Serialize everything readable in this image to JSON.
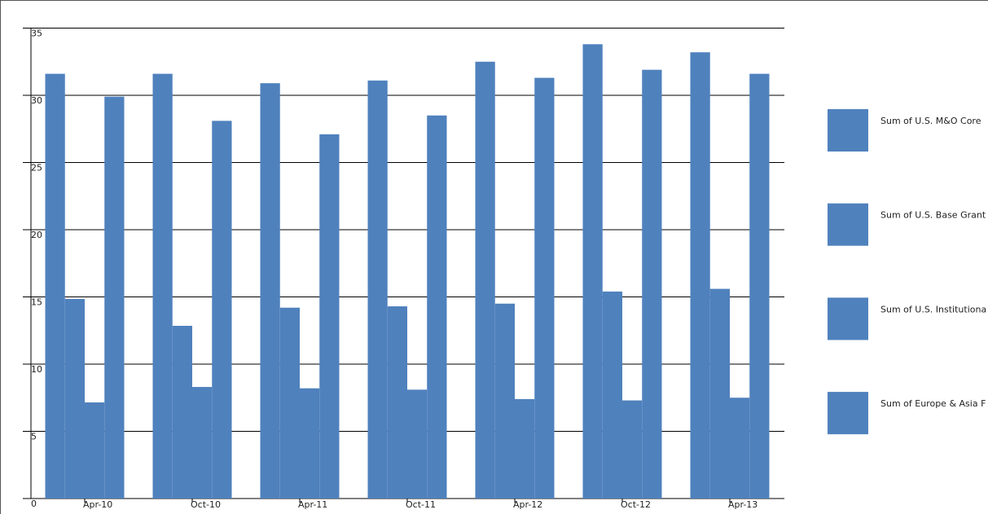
{
  "chart_data": {
    "type": "bar",
    "categories": [
      "Apr-10",
      "Oct-10",
      "Apr-11",
      "Oct-11",
      "Apr-12",
      "Oct-12",
      "Apr-13"
    ],
    "series": [
      {
        "name": "Sum of U.S. M&O Core",
        "color": "#4f81bd",
        "values": [
          31.6,
          31.6,
          30.9,
          31.1,
          32.5,
          33.8,
          33.2
        ]
      },
      {
        "name": "Sum of U.S. Base Grant",
        "color": "#4f81bd",
        "values": [
          14.85,
          12.85,
          14.2,
          14.3,
          14.5,
          15.4,
          15.6
        ]
      },
      {
        "name": "Sum of U.S. Institutiona",
        "color": "#4f81bd",
        "values": [
          7.15,
          8.3,
          8.2,
          8.1,
          7.4,
          7.3,
          7.5
        ]
      },
      {
        "name": "Sum of Europe & Asia F",
        "color": "#4f81bd",
        "values": [
          29.9,
          28.1,
          27.1,
          28.5,
          31.3,
          31.9,
          31.6
        ]
      }
    ],
    "ylim": [
      0,
      35
    ],
    "yticks": [
      0,
      5,
      10,
      15,
      20,
      25,
      30,
      35
    ],
    "grid": true
  }
}
